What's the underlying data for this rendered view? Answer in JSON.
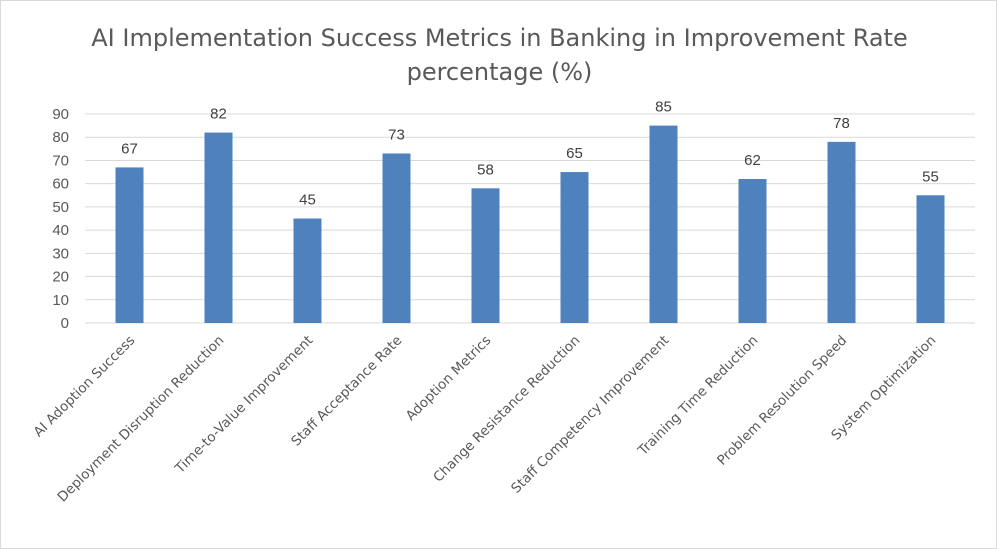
{
  "chart_data": {
    "type": "bar",
    "title": "AI Implementation Success Metrics in Banking in Improvement Rate percentage (%)",
    "categories": [
      "AI Adoption Success",
      "Deployment Disruption Reduction",
      "Time-to-Value Improvement",
      "Staff Acceptance Rate",
      "Adoption Metrics",
      "Change Resistance Reduction",
      "Staff Competency Improvement",
      "Training Time Reduction",
      "Problem Resolution Speed",
      "System Optimization"
    ],
    "values": [
      67,
      82,
      45,
      73,
      58,
      65,
      85,
      62,
      78,
      55
    ],
    "yticks": [
      0,
      10,
      20,
      30,
      40,
      50,
      60,
      70,
      80,
      90
    ],
    "ylim": [
      0,
      90
    ],
    "grid": true,
    "legend": "none",
    "data_labels": true,
    "bar_color": "#4f81bd",
    "grid_color": "#d9d9d9"
  }
}
